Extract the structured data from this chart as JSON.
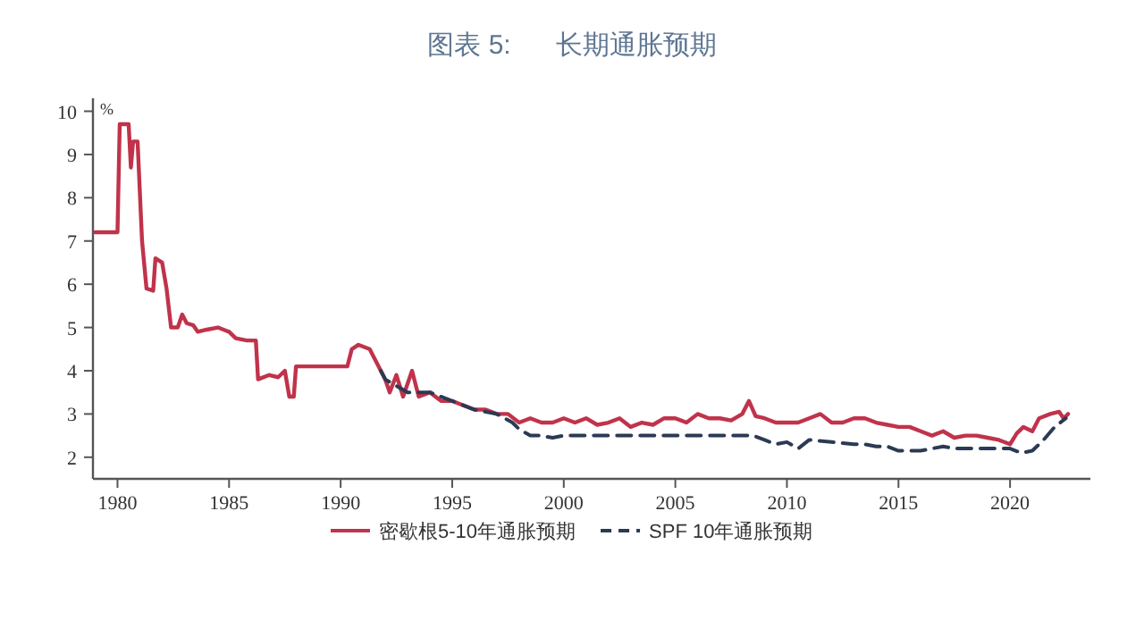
{
  "chart_data": {
    "type": "line",
    "title": "图表 5:      长期通胀预期",
    "ylabel": "%",
    "xlim": [
      1978.9,
      2023.6
    ],
    "xticks": [
      1980,
      1985,
      1990,
      1995,
      2000,
      2005,
      2010,
      2015,
      2020
    ],
    "ylim": [
      1.5,
      10.3
    ],
    "yticks": [
      2,
      3,
      4,
      5,
      6,
      7,
      8,
      9,
      10
    ],
    "grid": false,
    "legend": "bottom",
    "series": [
      {
        "name": "密歇根5-10年通胀预期",
        "color": "#c0334b",
        "line_style": "solid",
        "x": [
          1979,
          1980.0,
          1980.1,
          1980.5,
          1980.6,
          1980.7,
          1980.9,
          1981.1,
          1981.3,
          1981.6,
          1981.7,
          1982.0,
          1982.2,
          1982.4,
          1982.7,
          1982.9,
          1983.1,
          1983.4,
          1983.6,
          1984,
          1984.5,
          1985,
          1985.3,
          1985.8,
          1986.2,
          1986.3,
          1986.8,
          1987.2,
          1987.5,
          1987.7,
          1987.9,
          1988,
          1990.3,
          1990.5,
          1990.8,
          1991.3,
          1991.6,
          1992,
          1992.2,
          1992.5,
          1992.8,
          1993.2,
          1993.5,
          1994,
          1994.5,
          1995,
          1995.5,
          1996,
          1996.5,
          1997,
          1997.5,
          1998,
          1998.5,
          1999,
          1999.5,
          2000,
          2000.5,
          2001,
          2001.5,
          2002,
          2002.5,
          2003,
          2003.5,
          2004,
          2004.5,
          2005,
          2005.5,
          2006,
          2006.5,
          2007,
          2007.5,
          2008,
          2008.3,
          2008.6,
          2009,
          2009.5,
          2010,
          2010.5,
          2011,
          2011.5,
          2012,
          2012.5,
          2013,
          2013.5,
          2014,
          2014.5,
          2015,
          2015.5,
          2016,
          2016.5,
          2017,
          2017.5,
          2018,
          2018.5,
          2019,
          2019.5,
          2020,
          2020.3,
          2020.6,
          2021,
          2021.3,
          2021.8,
          2022.2,
          2022.4,
          2022.6
        ],
        "values": [
          7.2,
          7.2,
          9.7,
          9.7,
          8.7,
          9.3,
          9.3,
          7.0,
          5.9,
          5.85,
          6.6,
          6.5,
          5.9,
          5.0,
          5.0,
          5.3,
          5.1,
          5.05,
          4.9,
          4.95,
          5.0,
          4.9,
          4.75,
          4.7,
          4.7,
          3.8,
          3.9,
          3.85,
          4.0,
          3.4,
          3.4,
          4.1,
          4.1,
          4.5,
          4.6,
          4.5,
          4.2,
          3.8,
          3.5,
          3.9,
          3.4,
          4.0,
          3.4,
          3.5,
          3.3,
          3.3,
          3.2,
          3.1,
          3.1,
          3.0,
          3.0,
          2.8,
          2.9,
          2.8,
          2.8,
          2.9,
          2.8,
          2.9,
          2.75,
          2.8,
          2.9,
          2.7,
          2.8,
          2.75,
          2.9,
          2.9,
          2.8,
          3.0,
          2.9,
          2.9,
          2.85,
          3.0,
          3.3,
          2.95,
          2.9,
          2.8,
          2.8,
          2.8,
          2.9,
          3.0,
          2.8,
          2.8,
          2.9,
          2.9,
          2.8,
          2.75,
          2.7,
          2.7,
          2.6,
          2.5,
          2.6,
          2.45,
          2.5,
          2.5,
          2.45,
          2.4,
          2.3,
          2.55,
          2.7,
          2.6,
          2.9,
          3.0,
          3.05,
          2.9,
          3.0
        ]
      },
      {
        "name": "SPF 10年通胀预期",
        "color": "#2b3a55",
        "line_style": "dashed",
        "x": [
          1991.8,
          1992,
          1993,
          1994,
          1995,
          1996,
          1997,
          1997.7,
          1998,
          1998.5,
          1999,
          1999.5,
          2000,
          2002,
          2004,
          2006,
          2008,
          2008.5,
          2009,
          2009.5,
          2010,
          2010.5,
          2011,
          2012,
          2013,
          2013.5,
          2014,
          2014.5,
          2015,
          2016,
          2017,
          2017.5,
          2018,
          2019,
          2019.5,
          2020,
          2020.5,
          2021,
          2021.5,
          2022,
          2022.5
        ],
        "values": [
          4.0,
          3.8,
          3.5,
          3.5,
          3.3,
          3.1,
          3.0,
          2.8,
          2.65,
          2.5,
          2.5,
          2.45,
          2.5,
          2.5,
          2.5,
          2.5,
          2.5,
          2.5,
          2.4,
          2.3,
          2.35,
          2.2,
          2.4,
          2.35,
          2.3,
          2.3,
          2.25,
          2.25,
          2.15,
          2.15,
          2.25,
          2.2,
          2.2,
          2.2,
          2.2,
          2.2,
          2.1,
          2.15,
          2.4,
          2.7,
          2.9
        ]
      }
    ]
  }
}
